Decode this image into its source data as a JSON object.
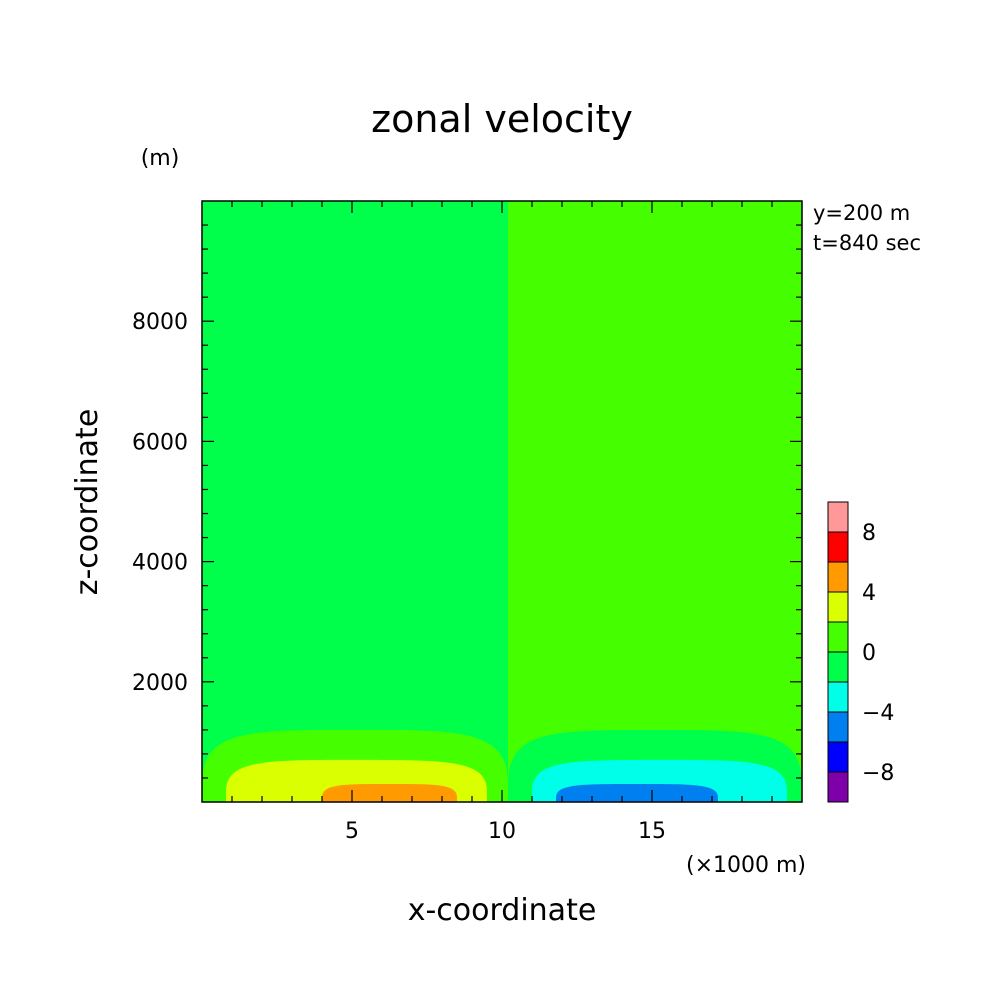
{
  "chart_data": {
    "type": "heatmap",
    "title": "zonal velocity",
    "xlabel": "x-coordinate",
    "ylabel": "z-coordinate",
    "y_unit": "(m)",
    "x_unit": "(×1000 m)",
    "annotations": [
      "y=200 m",
      "t=840 sec"
    ],
    "xlim": [
      0,
      20
    ],
    "ylim": [
      0,
      10000
    ],
    "x_ticks": [
      5,
      10,
      15
    ],
    "y_ticks": [
      2000,
      4000,
      6000,
      8000
    ],
    "x_tick_labels": [
      "5",
      "10",
      "15"
    ],
    "y_tick_labels": [
      "2000",
      "4000",
      "6000",
      "8000"
    ],
    "colorbar": {
      "levels": [
        -10,
        -8,
        -6,
        -4,
        -2,
        0,
        2,
        4,
        6,
        8,
        10
      ],
      "tick_values": [
        -8,
        -4,
        0,
        4,
        8
      ],
      "tick_labels": [
        "−8",
        "−4",
        "0",
        "4",
        "8"
      ],
      "colors": [
        "#7f00a8",
        "#0000ff",
        "#0080f0",
        "#00ffe8",
        "#00ff4a",
        "#45ff00",
        "#daff00",
        "#ff9a00",
        "#ff0000",
        "#ff9999"
      ]
    },
    "contour_regions": [
      {
        "level": [
          -2,
          0
        ],
        "x": [
          0,
          10.2
        ],
        "z": [
          0,
          10000
        ]
      },
      {
        "level": [
          0,
          2
        ],
        "x": [
          10.2,
          20
        ],
        "z": [
          0,
          10000
        ]
      },
      {
        "level": [
          0,
          2
        ],
        "x": [
          0,
          10.2
        ],
        "z": [
          0,
          1200
        ]
      },
      {
        "level": [
          2,
          4
        ],
        "x": [
          0.8,
          9.5
        ],
        "z": [
          0,
          700
        ]
      },
      {
        "level": [
          4,
          6
        ],
        "x": [
          4,
          8.5
        ],
        "z": [
          0,
          300
        ]
      },
      {
        "level": [
          -2,
          0
        ],
        "x": [
          10.2,
          20
        ],
        "z": [
          0,
          1200
        ]
      },
      {
        "level": [
          -4,
          -2
        ],
        "x": [
          11,
          19.5
        ],
        "z": [
          0,
          700
        ]
      },
      {
        "level": [
          -6,
          -4
        ],
        "x": [
          11.8,
          17.2
        ],
        "z": [
          0,
          300
        ]
      }
    ],
    "grid": false,
    "legend": "colorbar right"
  }
}
